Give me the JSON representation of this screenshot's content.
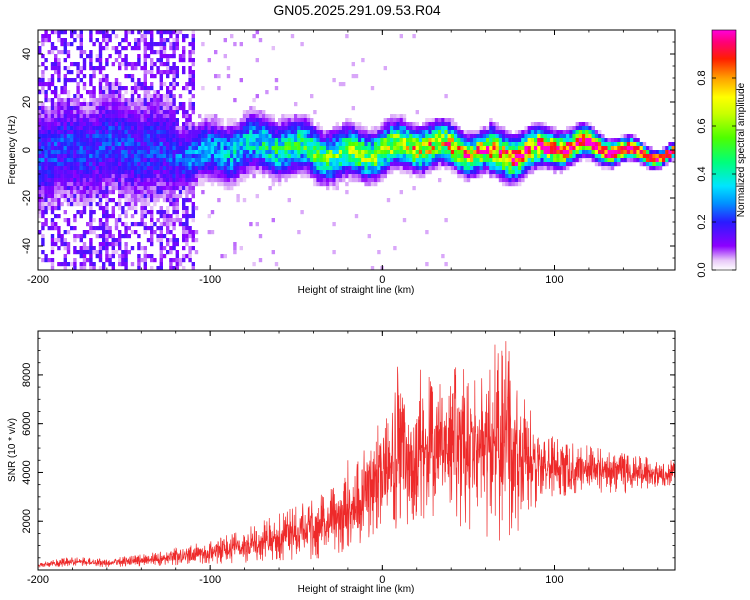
{
  "title": "GN05.2025.291.09.53.R04",
  "chart_data": [
    {
      "type": "heatmap",
      "title": "GN05.2025.291.09.53.R04",
      "xlabel": "Height of straight line (km)",
      "ylabel": "Frequency (Hz)",
      "xlim": [
        -200,
        170
      ],
      "ylim": [
        -50,
        50
      ],
      "xticks": [
        -200,
        -100,
        0,
        100
      ],
      "xtick_labels": [
        "-200",
        "-100",
        "0",
        "100"
      ],
      "yticks": [
        -40,
        -20,
        0,
        20,
        40
      ],
      "ytick_labels": [
        "-40",
        "-20",
        "0",
        "20",
        "40"
      ],
      "colorbar": {
        "label": "Normalized spectral amplitude",
        "range": [
          0.0,
          1.0
        ],
        "ticks": [
          0.0,
          0.2,
          0.4,
          0.6,
          0.8
        ],
        "tick_labels": [
          "0.0",
          "0.2",
          "0.4",
          "0.6",
          "0.8"
        ],
        "colormap": "rainbow"
      }
    },
    {
      "type": "line",
      "xlabel": "Height of straight line (km)",
      "ylabel": "SNR (10 * v/v)",
      "xlim": [
        -200,
        170
      ],
      "ylim": [
        0,
        9800
      ],
      "xticks": [
        -200,
        -100,
        0,
        100
      ],
      "xtick_labels": [
        "-200",
        "-100",
        "0",
        "100"
      ],
      "yticks": [
        2000,
        4000,
        6000,
        8000
      ],
      "ytick_labels": [
        "2000",
        "4000",
        "6000",
        "8000"
      ],
      "color": "#ee2a2a",
      "envelope": {
        "x": [
          -200,
          -180,
          -160,
          -140,
          -120,
          -100,
          -80,
          -60,
          -40,
          -25,
          -20,
          -15,
          -10,
          -5,
          0,
          5,
          10,
          15,
          20,
          25,
          30,
          35,
          40,
          45,
          50,
          55,
          60,
          65,
          70,
          75,
          80,
          85,
          90,
          95,
          100,
          110,
          120,
          130,
          140,
          150,
          160,
          170
        ],
        "upper": [
          300,
          550,
          450,
          650,
          900,
          1200,
          1700,
          2300,
          3000,
          3800,
          4500,
          4800,
          5500,
          6200,
          5700,
          6800,
          8800,
          7000,
          8000,
          8500,
          7200,
          7800,
          8200,
          8800,
          7800,
          8000,
          8300,
          9200,
          9700,
          8800,
          7200,
          6800,
          6000,
          5700,
          5400,
          5200,
          5100,
          4900,
          4800,
          4700,
          4600,
          4500
        ],
        "lower": [
          100,
          150,
          120,
          150,
          200,
          250,
          300,
          400,
          450,
          600,
          800,
          700,
          1000,
          1500,
          2000,
          1800,
          1600,
          1900,
          2100,
          1800,
          2000,
          1900,
          2200,
          1800,
          1700,
          1500,
          1400,
          1200,
          800,
          1000,
          1500,
          2200,
          2600,
          2800,
          3100,
          3000,
          3100,
          3200,
          3100,
          3300,
          3400,
          3500
        ]
      }
    }
  ]
}
